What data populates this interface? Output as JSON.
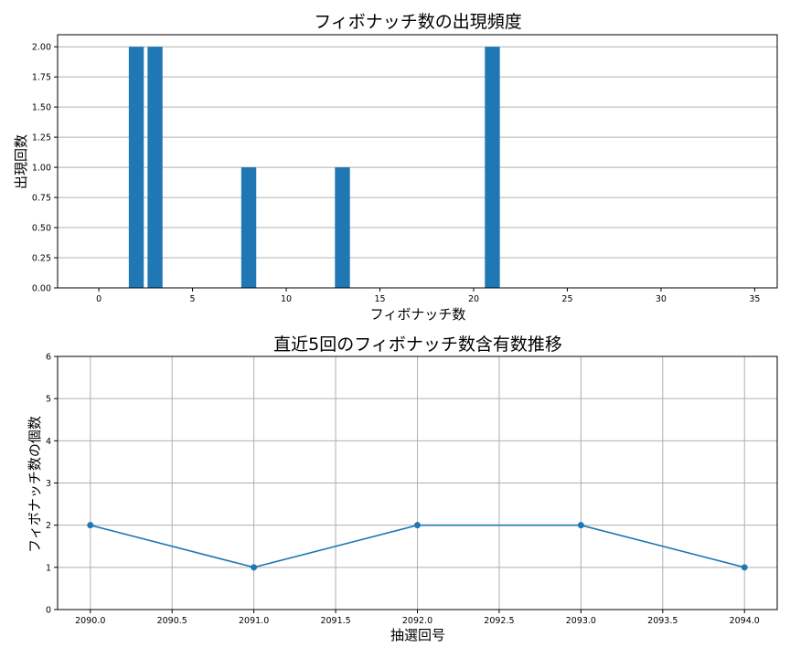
{
  "chart_data": [
    {
      "type": "bar",
      "title": "フィボナッチ数の出現頻度",
      "xlabel": "フィボナッチ数",
      "ylabel": "出現回数",
      "categories": [
        2,
        3,
        8,
        13,
        21
      ],
      "values": [
        2,
        2,
        1,
        1,
        2
      ],
      "xlim": [
        -2.2,
        36.2
      ],
      "ylim": [
        0,
        2.1
      ],
      "xticks": [
        "0",
        "5",
        "10",
        "15",
        "20",
        "25",
        "30",
        "35"
      ],
      "yticks": [
        "0.00",
        "0.25",
        "0.50",
        "0.75",
        "1.00",
        "1.25",
        "1.50",
        "1.75",
        "2.00"
      ],
      "grid": "y",
      "bar_color": "#1f77b4",
      "legend": null
    },
    {
      "type": "line",
      "title": "直近5回のフィボナッチ数含有数推移",
      "xlabel": "抽選回号",
      "ylabel": "フィボナッチ数の個数",
      "x": [
        2090,
        2091,
        2092,
        2093,
        2094
      ],
      "values": [
        2,
        1,
        2,
        2,
        1
      ],
      "xlim": [
        2089.8,
        2094.2
      ],
      "ylim": [
        0,
        6
      ],
      "xticks": [
        "2090.0",
        "2090.5",
        "2091.0",
        "2091.5",
        "2092.0",
        "2092.5",
        "2093.0",
        "2093.5",
        "2094.0"
      ],
      "yticks": [
        "0",
        "1",
        "2",
        "3",
        "4",
        "5",
        "6"
      ],
      "grid": "both",
      "marker": "circle",
      "line_color": "#1f77b4",
      "legend": null
    }
  ]
}
